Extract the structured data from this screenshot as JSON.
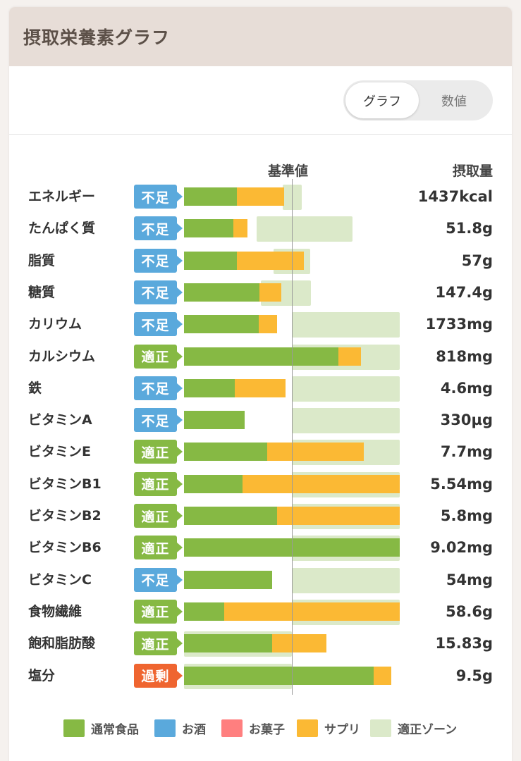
{
  "header": {
    "title": "摂取栄養素グラフ"
  },
  "toggle": {
    "graph_label": "グラフ",
    "number_label": "数値"
  },
  "columns": {
    "baseline": "基準値",
    "intake": "摂取量"
  },
  "colors": {
    "food": "#86b944",
    "alcohol": "#5aa9dc",
    "snack": "#ff7f7f",
    "supplement": "#fbb934",
    "zone": "#dbe9c9",
    "badge_low": "#5aa9dc",
    "badge_ok": "#86b944",
    "badge_over": "#ef6530"
  },
  "status_labels": {
    "low": "不足",
    "ok": "適正",
    "over": "過剰"
  },
  "nutrients": [
    {
      "label": "エネルギー",
      "status": "不足",
      "status_key": "low",
      "value": "1437kcal",
      "food_pct": 49,
      "supp_pct": 44,
      "zone_pct": [
        -13,
        14
      ]
    },
    {
      "label": "たんぱく質",
      "status": "不足",
      "status_key": "low",
      "value": "51.8g",
      "food_pct": 46,
      "supp_pct": 13,
      "zone_pct": [
        -50,
        86
      ]
    },
    {
      "label": "脂質",
      "status": "不足",
      "status_key": "low",
      "value": "57g",
      "food_pct": 49,
      "supp_pct": 62,
      "zone_pct": [
        -26,
        26
      ]
    },
    {
      "label": "糖質",
      "status": "不足",
      "status_key": "low",
      "value": "147.4g",
      "food_pct": 70,
      "supp_pct": 20,
      "zone_pct": [
        -44,
        27
      ]
    },
    {
      "label": "カリウム",
      "status": "不足",
      "status_key": "low",
      "value": "1733mg",
      "food_pct": 69,
      "supp_pct": 17,
      "zone_pct": [
        0,
        153
      ]
    },
    {
      "label": "カルシウム",
      "status": "適正",
      "status_key": "ok",
      "value": "818mg",
      "food_pct": 143,
      "supp_pct": 21,
      "zone_pct": [
        0,
        153
      ]
    },
    {
      "label": "鉄",
      "status": "不足",
      "status_key": "low",
      "value": "4.6mg",
      "food_pct": 47,
      "supp_pct": 47,
      "zone_pct": [
        0,
        153
      ]
    },
    {
      "label": "ビタミンA",
      "status": "不足",
      "status_key": "low",
      "value": "330µg",
      "food_pct": 56,
      "supp_pct": 0,
      "zone_pct": [
        0,
        153
      ]
    },
    {
      "label": "ビタミンE",
      "status": "適正",
      "status_key": "ok",
      "value": "7.7mg",
      "food_pct": 77,
      "supp_pct": 90,
      "zone_pct": [
        0,
        153
      ]
    },
    {
      "label": "ビタミンB1",
      "status": "適正",
      "status_key": "ok",
      "value": "5.54mg",
      "food_pct": 54,
      "supp_pct": 252,
      "zone_pct": [
        0,
        153
      ]
    },
    {
      "label": "ビタミンB2",
      "status": "適正",
      "status_key": "ok",
      "value": "5.8mg",
      "food_pct": 86,
      "supp_pct": 219,
      "zone_pct": [
        0,
        153
      ]
    },
    {
      "label": "ビタミンB6",
      "status": "適正",
      "status_key": "ok",
      "value": "9.02mg",
      "food_pct": 305,
      "supp_pct": 0,
      "zone_pct": [
        0,
        153
      ]
    },
    {
      "label": "ビタミンC",
      "status": "不足",
      "status_key": "low",
      "value": "54mg",
      "food_pct": 82,
      "supp_pct": 0,
      "zone_pct": [
        0,
        153
      ]
    },
    {
      "label": "食物繊維",
      "status": "適正",
      "status_key": "ok",
      "value": "58.6g",
      "food_pct": 37,
      "supp_pct": 268,
      "zone_pct": [
        0,
        153
      ]
    },
    {
      "label": "飽和脂肪酸",
      "status": "適正",
      "status_key": "ok",
      "value": "15.83g",
      "food_pct": 82,
      "supp_pct": 50,
      "zone_pct": [
        -153,
        0
      ]
    },
    {
      "label": "塩分",
      "status": "過剰",
      "status_key": "over",
      "value": "9.5g",
      "food_pct": 176,
      "supp_pct": 16,
      "zone_pct": [
        -153,
        0
      ]
    }
  ],
  "legend": [
    {
      "label": "通常食品",
      "color": "#86b944"
    },
    {
      "label": "お酒",
      "color": "#5aa9dc"
    },
    {
      "label": "お菓子",
      "color": "#ff7f7f"
    },
    {
      "label": "サプリ",
      "color": "#fbb934"
    },
    {
      "label": "適正ゾーン",
      "color": "#dbe9c9"
    }
  ]
}
